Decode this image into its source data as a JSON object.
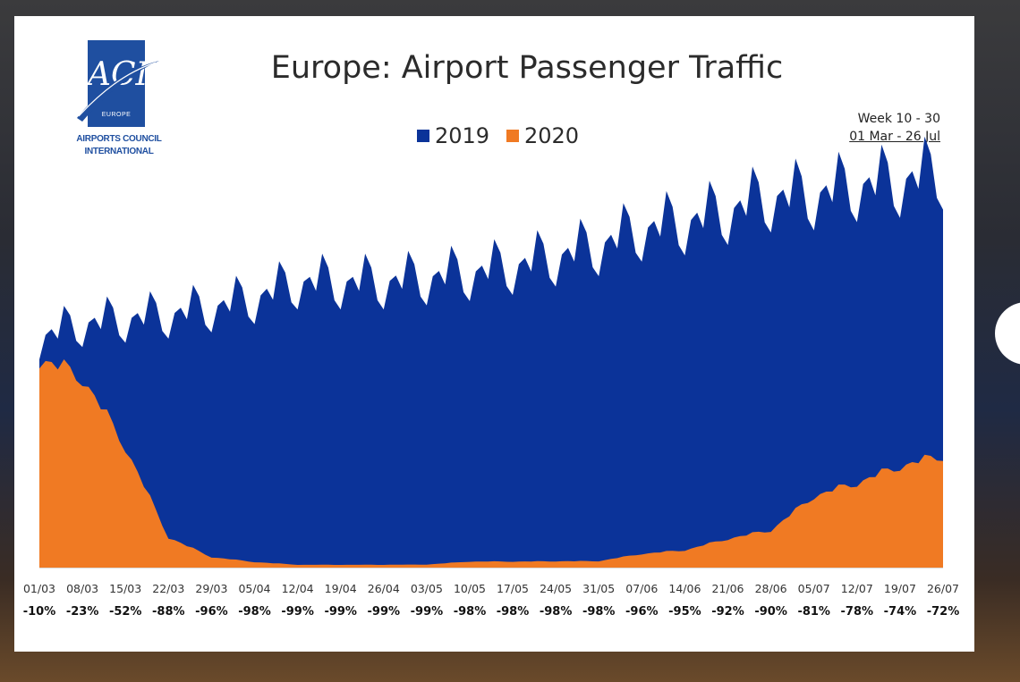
{
  "logo": {
    "mark": "ACI",
    "region": "EUROPE",
    "name_line1": "AIRPORTS COUNCIL",
    "name_line2": "INTERNATIONAL"
  },
  "period": {
    "weeks": "Week 10 - 30",
    "dates": "01 Mar - 26 Jul"
  },
  "chart_data": {
    "type": "area",
    "title": "Europe: Airport Passenger Traffic",
    "xlabel": "",
    "ylabel": "",
    "grid": false,
    "legend_position": "top-center",
    "x_tick_labels": [
      "01/03",
      "08/03",
      "15/03",
      "22/03",
      "29/03",
      "05/04",
      "12/04",
      "19/04",
      "26/04",
      "03/05",
      "10/05",
      "17/05",
      "24/05",
      "31/05",
      "07/06",
      "14/06",
      "21/06",
      "28/06",
      "05/07",
      "12/07",
      "19/07",
      "26/07"
    ],
    "change_labels": [
      "-10%",
      "-23%",
      "-52%",
      "-88%",
      "-96%",
      "-98%",
      "-99%",
      "-99%",
      "-99%",
      "-99%",
      "-98%",
      "-98%",
      "-98%",
      "-98%",
      "-96%",
      "-95%",
      "-92%",
      "-90%",
      "-81%",
      "-78%",
      "-74%",
      "-72%"
    ],
    "weekly_change_pct": [
      -10,
      -23,
      -52,
      -88,
      -96,
      -98,
      -99,
      -99,
      -99,
      -99,
      -98,
      -98,
      -98,
      -98,
      -96,
      -95,
      -92,
      -90,
      -81,
      -78,
      -74,
      -72
    ],
    "series": [
      {
        "name": "2019",
        "color": "#0b3399",
        "weekly_level": [
          100,
          106,
          108,
          110,
          113,
          117,
          124,
          124,
          124,
          126,
          128,
          131,
          135,
          140,
          147,
          150,
          155,
          161,
          162,
          166,
          168,
          172
        ]
      },
      {
        "name": "2020",
        "color": "#f07a23",
        "weekly_level": [
          90,
          82,
          52,
          13,
          4.5,
          2.4,
          1.2,
          1.2,
          1.2,
          1.3,
          2.6,
          2.6,
          2.7,
          2.8,
          5.9,
          7.5,
          12.4,
          16.1,
          30.8,
          36.5,
          43.7,
          48.2
        ]
      }
    ],
    "ylim": [
      0,
      180
    ]
  }
}
